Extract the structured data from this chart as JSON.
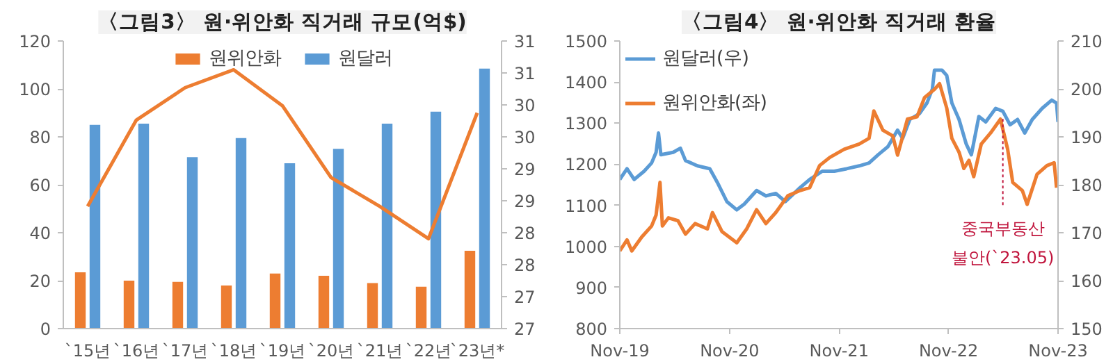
{
  "chart_data": [
    {
      "type": "bar",
      "title": "〈그림3〉 원·위안화 직거래 규모(억$)",
      "categories": [
        "`15년",
        "`16년",
        "`17년",
        "`18년",
        "`19년",
        "`20년",
        "`21년",
        "`22년",
        "`23년*"
      ],
      "series": [
        {
          "name": "원위안화",
          "color": "#ed7d31",
          "values": [
            23.5,
            20,
            19.5,
            18,
            23,
            22,
            19,
            17.5,
            32.5
          ]
        },
        {
          "name": "원달러",
          "color": "#5b9bd5",
          "values": [
            85,
            85.5,
            71.5,
            79.5,
            69,
            75,
            85.5,
            90.5,
            108.5
          ]
        },
        {
          "type": "line",
          "axis": "y2",
          "color": "#ed7d31",
          "values": [
            28.7,
            29.9,
            30.35,
            30.6,
            30.1,
            29.1,
            28.7,
            28.25,
            30.0
          ]
        }
      ],
      "ylim": [
        0,
        120
      ],
      "yticks": [
        0,
        20,
        40,
        60,
        80,
        100,
        120
      ],
      "y2lim": [
        27,
        31
      ],
      "y2ticks": [
        {
          "value": 27,
          "label": "27"
        },
        {
          "value": 27.444,
          "label": "27"
        },
        {
          "value": 27.889,
          "label": "28"
        },
        {
          "value": 28.333,
          "label": "28"
        },
        {
          "value": 28.778,
          "label": "29"
        },
        {
          "value": 29.222,
          "label": "29"
        },
        {
          "value": 29.667,
          "label": "30"
        },
        {
          "value": 30.111,
          "label": "30"
        },
        {
          "value": 30.556,
          "label": "31"
        },
        {
          "value": 31,
          "label": "31"
        }
      ],
      "legend": "top",
      "grid": false
    },
    {
      "type": "line",
      "title": "〈그림4〉 원·위안화 직거래 환율",
      "series": [
        {
          "name": "원달러(우)",
          "color": "#5b9bd5",
          "x": [
            "2019-11-01",
            "2019-11-25",
            "2019-12-19",
            "2020-01-21",
            "2020-02-15",
            "2020-03-01",
            "2020-03-09",
            "2020-03-17",
            "2020-04-27",
            "2020-05-21",
            "2020-06-07",
            "2020-07-17",
            "2020-08-27",
            "2020-09-21",
            "2020-10-23",
            "2020-11-25",
            "2020-12-20",
            "2021-01-30",
            "2021-03-02",
            "2021-04-04",
            "2021-05-06",
            "2021-06-24",
            "2021-07-26",
            "2021-09-06",
            "2021-10-16",
            "2021-11-26",
            "2022-01-07",
            "2022-02-09",
            "2022-03-11",
            "2022-04-13",
            "2022-05-15",
            "2022-06-01",
            "2022-06-25",
            "2022-07-27",
            "2022-08-21",
            "2022-09-08",
            "2022-09-15",
            "2022-10-10",
            "2022-10-26",
            "2022-11-12",
            "2022-12-06",
            "2022-12-30",
            "2023-01-16",
            "2023-02-10",
            "2023-03-05",
            "2023-04-07",
            "2023-05-01",
            "2023-05-25",
            "2023-06-19",
            "2023-07-13",
            "2023-08-07",
            "2023-09-09",
            "2023-10-11",
            "2023-10-27",
            "2023-11-01"
          ],
          "values": [
            1163,
            1189,
            1163,
            1183,
            1203,
            1229,
            1276,
            1223,
            1229,
            1239,
            1209,
            1196,
            1189,
            1156,
            1109,
            1089,
            1103,
            1136,
            1123,
            1129,
            1109,
            1143,
            1163,
            1183,
            1183,
            1189,
            1196,
            1203,
            1223,
            1243,
            1283,
            1263,
            1309,
            1323,
            1349,
            1383,
            1429,
            1429,
            1416,
            1349,
            1309,
            1249,
            1223,
            1316,
            1303,
            1336,
            1329,
            1296,
            1309,
            1276,
            1309,
            1336,
            1356,
            1349,
            1303
          ]
        },
        {
          "name": "원위안화(좌)",
          "color": "#ed7d31",
          "axis": "y2",
          "x": [
            "2019-11-01",
            "2019-11-25",
            "2019-12-11",
            "2020-01-13",
            "2020-02-15",
            "2020-03-01",
            "2020-03-14",
            "2020-03-22",
            "2020-04-11",
            "2020-05-13",
            "2020-06-07",
            "2020-07-09",
            "2020-08-19",
            "2020-09-05",
            "2020-10-07",
            "2020-11-25",
            "2020-12-28",
            "2021-01-30",
            "2021-03-02",
            "2021-04-04",
            "2021-05-14",
            "2021-06-24",
            "2021-07-26",
            "2021-08-28",
            "2021-10-01",
            "2021-11-18",
            "2022-01-07",
            "2022-02-09",
            "2022-02-25",
            "2022-03-27",
            "2022-04-29",
            "2022-05-15",
            "2022-06-17",
            "2022-07-19",
            "2022-08-13",
            "2022-09-15",
            "2022-10-02",
            "2022-10-26",
            "2022-11-12",
            "2022-12-06",
            "2022-12-22",
            "2023-01-08",
            "2023-01-24",
            "2023-02-18",
            "2023-03-21",
            "2023-04-23",
            "2023-05-17",
            "2023-06-03",
            "2023-07-05",
            "2023-07-21",
            "2023-08-23",
            "2023-09-25",
            "2023-10-19",
            "2023-10-27"
          ],
          "values": [
            166.2,
            168.5,
            166.2,
            169.1,
            171.4,
            173.7,
            180.5,
            171.4,
            173.1,
            172.5,
            169.7,
            171.9,
            170.8,
            174.2,
            170.2,
            167.9,
            170.8,
            174.8,
            171.9,
            174.2,
            177.7,
            178.8,
            179.4,
            184.0,
            185.7,
            187.4,
            188.5,
            189.7,
            195.4,
            191.4,
            190.2,
            186.2,
            193.7,
            194.2,
            198.2,
            199.9,
            201.1,
            196.0,
            189.7,
            186.8,
            183.4,
            185.1,
            181.7,
            188.5,
            190.8,
            193.7,
            187.4,
            180.5,
            178.8,
            175.9,
            182.2,
            184.0,
            184.6,
            179.4
          ]
        }
      ],
      "xlim": [
        "2019-11-01",
        "2023-11-01"
      ],
      "xticks": [
        {
          "value": "2019-11-01",
          "label": "Nov-19"
        },
        {
          "value": "2020-11-01",
          "label": "Nov-20"
        },
        {
          "value": "2021-11-01",
          "label": "Nov-21"
        },
        {
          "value": "2022-11-01",
          "label": "Nov-22"
        },
        {
          "value": "2023-11-01",
          "label": "Nov-23"
        }
      ],
      "ylim": [
        800,
        1500
      ],
      "yticks": [
        800,
        900,
        1000,
        1100,
        1200,
        1300,
        1400,
        1500
      ],
      "y2lim": [
        150,
        210
      ],
      "y2ticks": [
        150,
        160,
        170,
        180,
        190,
        200,
        210
      ],
      "annotations": [
        {
          "text": "중국부동산 불안(`23.05)",
          "x": "2023-05-01",
          "y": 1310
        }
      ],
      "legend": "top left",
      "grid": false
    }
  ]
}
